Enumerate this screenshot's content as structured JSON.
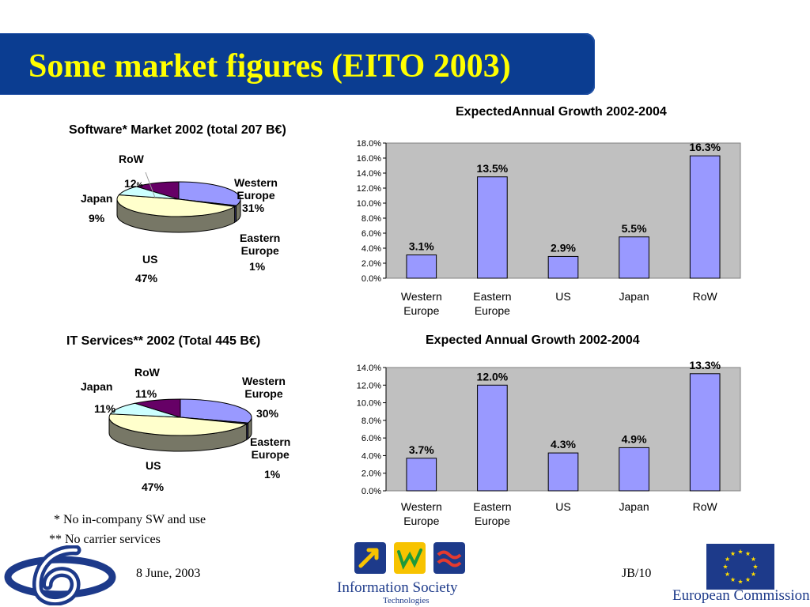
{
  "slide": {
    "title": "Some market figures (EITO 2003)",
    "footnote_1": "* No in-company SW and use",
    "footnote_2": "** No carrier services",
    "date": "8 June, 2003",
    "page": "JB/10"
  },
  "logos": {
    "ist_line1": "Information Society",
    "ist_line2": "Technologies",
    "ec": "European Commission",
    "fp6_icon": "fp6-logo-icon",
    "eu_flag_icon": "eu-flag-icon"
  },
  "colors": {
    "banner": "#0b3d91",
    "title": "#ffff00",
    "bar_fill": "#9999ff",
    "plot_bg": "#c0c0c0",
    "pie_we": "#9999ff",
    "pie_ee": "#333366",
    "pie_us": "#ffffcc",
    "pie_jp": "#ccffff",
    "pie_row": "#660066",
    "pie_side": "#777766"
  },
  "chart_data": [
    {
      "type": "pie",
      "title": "Software* Market 2002 (total 207 B€)",
      "categories": [
        "Western Europe",
        "Eastern Europe",
        "US",
        "Japan",
        "RoW"
      ],
      "values": [
        31,
        1,
        47,
        9,
        12
      ],
      "labels": {
        "western_europe": {
          "name_1": "Western",
          "name_2": "Europe",
          "value": "31%"
        },
        "eastern_europe": {
          "name_1": "Eastern",
          "name_2": "Europe",
          "value": "1%"
        },
        "us": {
          "name": "US",
          "value": "47%"
        },
        "japan": {
          "name": "Japan",
          "value": "9%"
        },
        "row": {
          "name": "RoW",
          "value_num": "12",
          "value_pct": "%"
        }
      }
    },
    {
      "type": "bar",
      "title": "ExpectedAnnual Growth 2002-2004",
      "categories": [
        "Western Europe",
        "Eastern Europe",
        "US",
        "Japan",
        "RoW"
      ],
      "values": [
        3.1,
        13.5,
        2.9,
        5.5,
        16.3
      ],
      "data_labels": [
        "3.1%",
        "13.5%",
        "2.9%",
        "5.5%",
        "16.3%"
      ],
      "ylim": [
        0,
        18
      ],
      "yticks": [
        "0.0%",
        "2.0%",
        "4.0%",
        "6.0%",
        "8.0%",
        "10.0%",
        "12.0%",
        "14.0%",
        "16.0%",
        "18.0%"
      ],
      "grid": false,
      "xlabel": "",
      "ylabel": ""
    },
    {
      "type": "pie",
      "title": "IT Services** 2002 (Total 445 B€)",
      "categories": [
        "Western Europe",
        "Eastern Europe",
        "US",
        "Japan",
        "RoW"
      ],
      "values": [
        30,
        1,
        47,
        11,
        11
      ],
      "labels": {
        "western_europe": {
          "name_1": "Western",
          "name_2": "Europe",
          "value": "30%"
        },
        "eastern_europe": {
          "name_1": "Eastern",
          "name_2": "Europe",
          "value": "1%"
        },
        "us": {
          "name": "US",
          "value": "47%"
        },
        "japan": {
          "name": "Japan",
          "value": "11%"
        },
        "row": {
          "name": "RoW",
          "value": "11%"
        }
      }
    },
    {
      "type": "bar",
      "title": "Expected Annual Growth 2002-2004",
      "categories": [
        "Western Europe",
        "Eastern Europe",
        "US",
        "Japan",
        "RoW"
      ],
      "values": [
        3.7,
        12.0,
        4.3,
        4.9,
        13.3
      ],
      "data_labels": [
        "3.7%",
        "12.0%",
        "4.3%",
        "4.9%",
        "13.3%"
      ],
      "ylim": [
        0,
        14
      ],
      "yticks": [
        "0.0%",
        "2.0%",
        "4.0%",
        "6.0%",
        "8.0%",
        "10.0%",
        "12.0%",
        "14.0%"
      ],
      "grid": false,
      "xlabel": "",
      "ylabel": ""
    }
  ]
}
